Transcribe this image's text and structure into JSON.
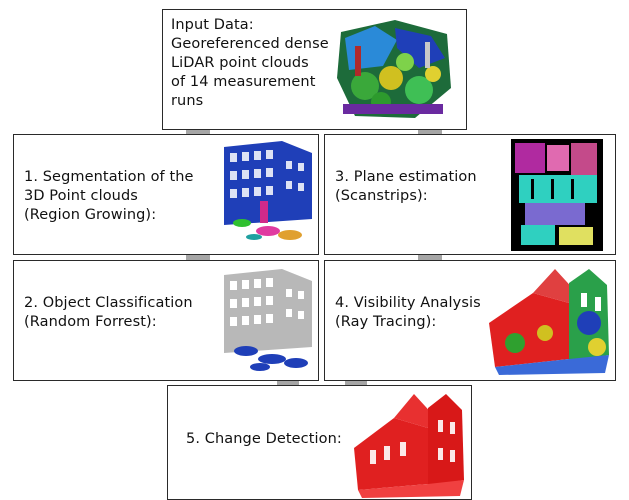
{
  "steps": {
    "input": {
      "label": "Input Data:\nGeoreferenced dense\nLiDAR point clouds\nof 14 measurement\nruns"
    },
    "segmentation": {
      "label": "1. Segmentation of the\n3D Point clouds\n(Region Growing):"
    },
    "classification": {
      "label": "2. Object Classification\n(Random Forrest):"
    },
    "plane": {
      "label": "3. Plane estimation\n(Scanstrips):"
    },
    "visibility": {
      "label": "4. Visibility Analysis\n(Ray Tracing):"
    },
    "change": {
      "label": "5. Change Detection:"
    }
  },
  "colors": {
    "arrow": "#a6a6a6",
    "border": "#2a2a2a",
    "segmentation_blue": "#1f3fb8",
    "change_red": "#e02020",
    "plane_cyan": "#2fd0c0"
  },
  "icons": {
    "input": "lidar-point-cloud-image",
    "segmentation": "segmented-facade-image",
    "classification": "classified-facade-image",
    "plane": "scanstrip-planes-image",
    "visibility": "visibility-church-image",
    "change": "change-detection-church-image"
  }
}
